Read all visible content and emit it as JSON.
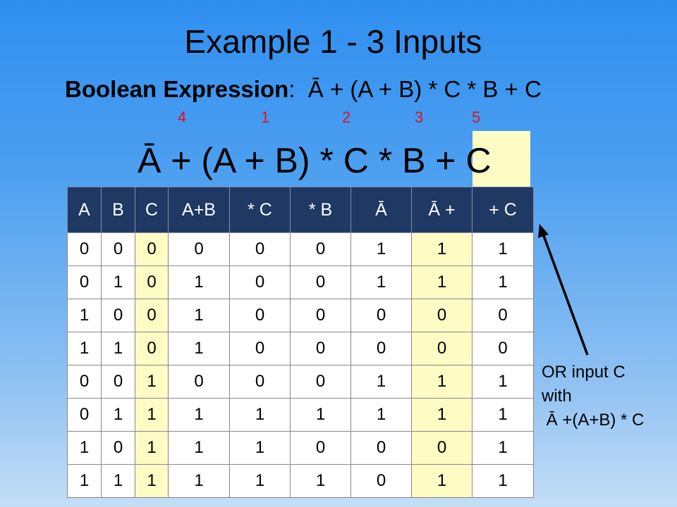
{
  "title": "Example 1 - 3 Inputs",
  "expression": {
    "label": "Boolean Expression",
    "separator": ":",
    "text": "Ā + (A + B) * C * B + C"
  },
  "order_numbers": [
    "4",
    "1",
    "2",
    "3",
    "5"
  ],
  "big_expression": {
    "main": "Ā + (A + B) * C * B ",
    "highlighted": "+ C"
  },
  "table": {
    "headers": [
      "A",
      "B",
      "C",
      "A+B",
      "* C",
      "* B",
      "Ā",
      "Ā +",
      "+ C"
    ],
    "rows": [
      [
        "0",
        "0",
        "0",
        "0",
        "0",
        "0",
        "1",
        "1",
        "1"
      ],
      [
        "0",
        "1",
        "0",
        "1",
        "0",
        "0",
        "1",
        "1",
        "1"
      ],
      [
        "1",
        "0",
        "0",
        "1",
        "0",
        "0",
        "0",
        "0",
        "0"
      ],
      [
        "1",
        "1",
        "0",
        "1",
        "0",
        "0",
        "0",
        "0",
        "0"
      ],
      [
        "0",
        "0",
        "1",
        "0",
        "0",
        "0",
        "1",
        "1",
        "1"
      ],
      [
        "0",
        "1",
        "1",
        "1",
        "1",
        "1",
        "1",
        "1",
        "1"
      ],
      [
        "1",
        "0",
        "1",
        "1",
        "1",
        "0",
        "0",
        "0",
        "1"
      ],
      [
        "1",
        "1",
        "1",
        "1",
        "1",
        "1",
        "0",
        "1",
        "1"
      ]
    ]
  },
  "note": {
    "line1": "OR input C",
    "line2": "with",
    "line3": " Ā +(A+B) * C"
  },
  "colors": {
    "highlight": "#fefbc4",
    "header_bg": "#1f3864",
    "order_numbers": "#e0101a"
  }
}
